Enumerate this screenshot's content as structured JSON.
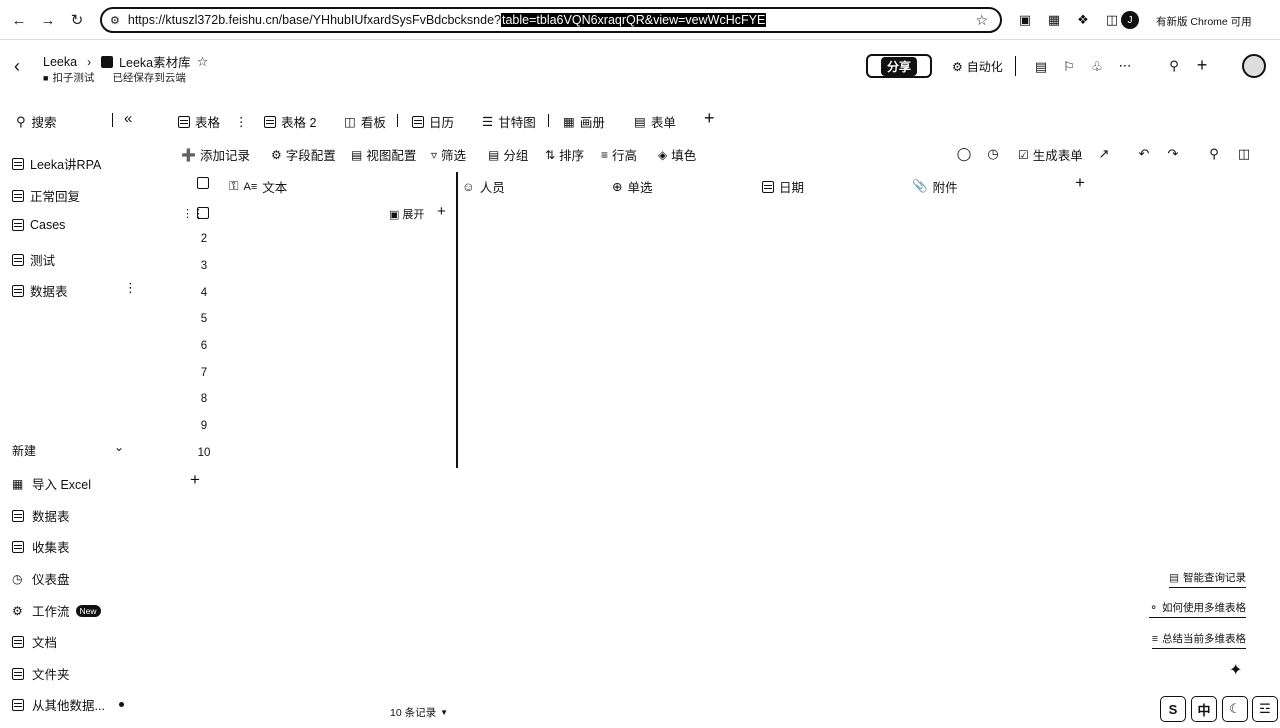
{
  "browser": {
    "url_prefix": "https://ktuszl372b.feishu.cn/base/YHhubIUfxardSysFvBdcbcksnde?",
    "url_selected": "table=tbla6VQN6xraqrQR&view=vewWcHcFYE",
    "chrome_update": "有新版 Chrome 可用",
    "profile_initial": "J"
  },
  "header": {
    "breadcrumb_root": "Leeka",
    "doc_title": "Leeka素材库",
    "tag_label": "扣子测试",
    "save_status": "已经保存到云端",
    "share_label": "分享",
    "automation_label": "自动化"
  },
  "sidebar": {
    "search_label": "搜索",
    "tables": [
      {
        "label": "Leeka讲RPA"
      },
      {
        "label": "正常回复"
      },
      {
        "label": "Cases"
      },
      {
        "label": "测试"
      },
      {
        "label": "数据表"
      }
    ],
    "new_label": "新建",
    "create_items": [
      {
        "label": "导入 Excel",
        "icon": "excel-icon"
      },
      {
        "label": "数据表",
        "icon": "table-icon"
      },
      {
        "label": "收集表",
        "icon": "form-icon"
      },
      {
        "label": "仪表盘",
        "icon": "dashboard-icon"
      },
      {
        "label": "工作流",
        "icon": "workflow-icon",
        "badge": "New"
      },
      {
        "label": "文档",
        "icon": "doc-icon"
      },
      {
        "label": "文件夹",
        "icon": "folder-icon"
      },
      {
        "label": "从其他数据...",
        "icon": "import-icon"
      }
    ]
  },
  "views": {
    "tabs": [
      {
        "label": "表格"
      },
      {
        "label": "表格 2"
      },
      {
        "label": "看板"
      },
      {
        "label": "日历"
      },
      {
        "label": "甘特图"
      },
      {
        "label": "画册"
      },
      {
        "label": "表单"
      }
    ]
  },
  "toolbar": {
    "add_record": "添加记录",
    "field_config": "字段配置",
    "view_config": "视图配置",
    "filter": "筛选",
    "group": "分组",
    "sort": "排序",
    "row_height": "行高",
    "fill_color": "填色",
    "generate_form": "生成表单"
  },
  "grid": {
    "columns": {
      "text": "文本",
      "person": "人员",
      "single_select": "单选",
      "date": "日期",
      "attachment": "附件"
    },
    "expand_label": "展开",
    "row_numbers": [
      "2",
      "3",
      "4",
      "5",
      "6",
      "7",
      "8",
      "9",
      "10"
    ],
    "record_count": "10 条记录"
  },
  "assistant": {
    "items": [
      "智能查询记录",
      "如何使用多维表格",
      "总结当前多维表格"
    ]
  },
  "tray": {
    "ime": "中"
  }
}
